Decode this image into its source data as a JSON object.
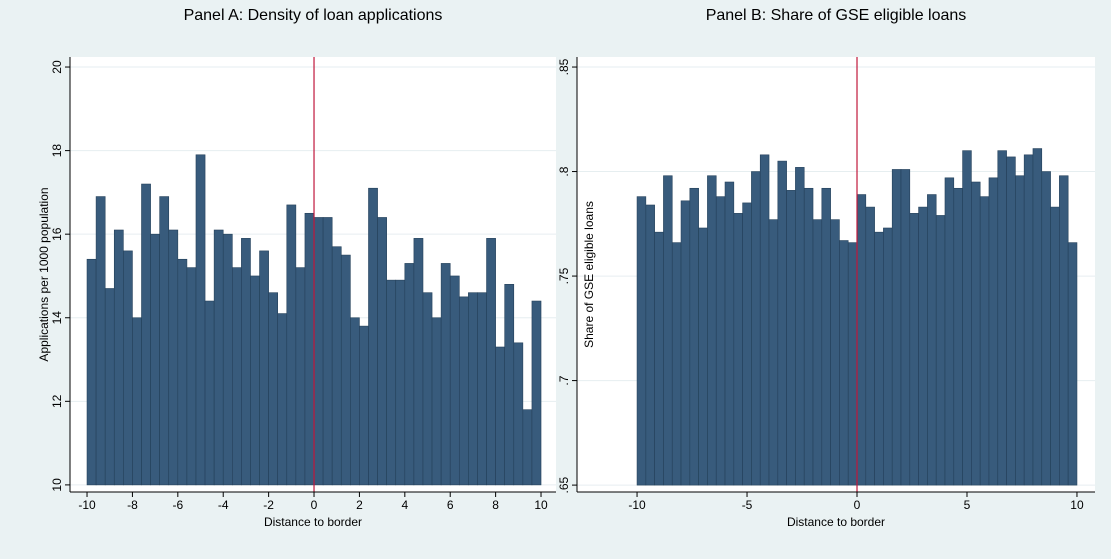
{
  "chart_data": [
    {
      "type": "histogram",
      "title": "Panel A: Density of loan applications",
      "x_label": "Distance to border",
      "y_label": "Applications per 1000 population",
      "bins": [
        -10,
        -9.6,
        -9.2,
        -8.8,
        -8.4,
        -8,
        -7.6,
        -7.2,
        -6.8,
        -6.4,
        -6,
        -5.6,
        -5.2,
        -4.8,
        -4.4,
        -4,
        -3.6,
        -3.2,
        -2.8,
        -2.4,
        -2,
        -1.6,
        -1.2,
        -0.8,
        -0.4,
        0,
        0.4,
        0.8,
        1.2,
        1.6,
        2,
        2.4,
        2.8,
        3.2,
        3.6,
        4,
        4.4,
        4.8,
        5.2,
        5.6,
        6,
        6.4,
        6.8,
        7.2,
        7.6,
        8,
        8.4,
        8.8,
        9.2,
        9.6,
        10
      ],
      "values": [
        15.4,
        16.9,
        14.7,
        16.1,
        15.6,
        14.0,
        17.2,
        16.0,
        16.9,
        16.1,
        15.4,
        15.2,
        17.9,
        14.4,
        16.1,
        16.0,
        15.2,
        15.9,
        15.0,
        15.6,
        14.6,
        14.1,
        16.7,
        15.2,
        16.5,
        16.4,
        16.4,
        15.7,
        15.5,
        14.0,
        13.8,
        17.1,
        16.4,
        14.9,
        14.9,
        15.3,
        15.9,
        14.6,
        14.0,
        15.3,
        15.0,
        14.5,
        14.6,
        14.6,
        15.9,
        13.3,
        14.8,
        13.4,
        11.8,
        14.4
      ],
      "color": "#385b7c",
      "vline": 0,
      "vline_color": "#c0183c",
      "xlim": [
        -10.75,
        10.66
      ],
      "ylim": [
        9.83,
        20.24
      ],
      "xticks": [
        -10,
        -8,
        -6,
        -4,
        -2,
        0,
        2,
        4,
        6,
        8,
        10
      ],
      "yticks": [
        10,
        12,
        14,
        16,
        18,
        20
      ],
      "grid": true
    },
    {
      "type": "histogram",
      "title": "Panel B: Share of GSE eligible loans",
      "x_label": "Distance to border",
      "y_label": "Share of GSE eligible loans",
      "bins": [
        -10,
        -9.6,
        -9.2,
        -8.8,
        -8.4,
        -8,
        -7.6,
        -7.2,
        -6.8,
        -6.4,
        -6,
        -5.6,
        -5.2,
        -4.8,
        -4.4,
        -4,
        -3.6,
        -3.2,
        -2.8,
        -2.4,
        -2,
        -1.6,
        -1.2,
        -0.8,
        -0.4,
        0,
        0.4,
        0.8,
        1.2,
        1.6,
        2,
        2.4,
        2.8,
        3.2,
        3.6,
        4,
        4.4,
        4.8,
        5.2,
        5.6,
        6,
        6.4,
        6.8,
        7.2,
        7.6,
        8,
        8.4,
        8.8,
        9.2,
        9.6,
        10
      ],
      "values": [
        0.788,
        0.784,
        0.771,
        0.798,
        0.766,
        0.786,
        0.792,
        0.773,
        0.798,
        0.788,
        0.795,
        0.78,
        0.785,
        0.8,
        0.808,
        0.777,
        0.805,
        0.791,
        0.802,
        0.792,
        0.777,
        0.792,
        0.777,
        0.767,
        0.766,
        0.789,
        0.783,
        0.771,
        0.773,
        0.801,
        0.801,
        0.78,
        0.783,
        0.789,
        0.779,
        0.797,
        0.792,
        0.81,
        0.795,
        0.788,
        0.797,
        0.81,
        0.807,
        0.798,
        0.808,
        0.811,
        0.8,
        0.783,
        0.798,
        0.766
      ],
      "color": "#385b7c",
      "vline": 0,
      "vline_color": "#c0183c",
      "xlim": [
        -12.73,
        10.82
      ],
      "ylim": [
        0.6467,
        0.8548
      ],
      "xticks": [
        -10,
        -5,
        0,
        5,
        10
      ],
      "yticks": [
        {
          "value": 0.65,
          "label": ".65"
        },
        {
          "value": 0.7,
          "label": ".7"
        },
        {
          "value": 0.75,
          "label": ".75"
        },
        {
          "value": 0.8,
          "label": ".8"
        },
        {
          "value": 0.85,
          "label": ".85"
        }
      ],
      "grid": true
    }
  ]
}
